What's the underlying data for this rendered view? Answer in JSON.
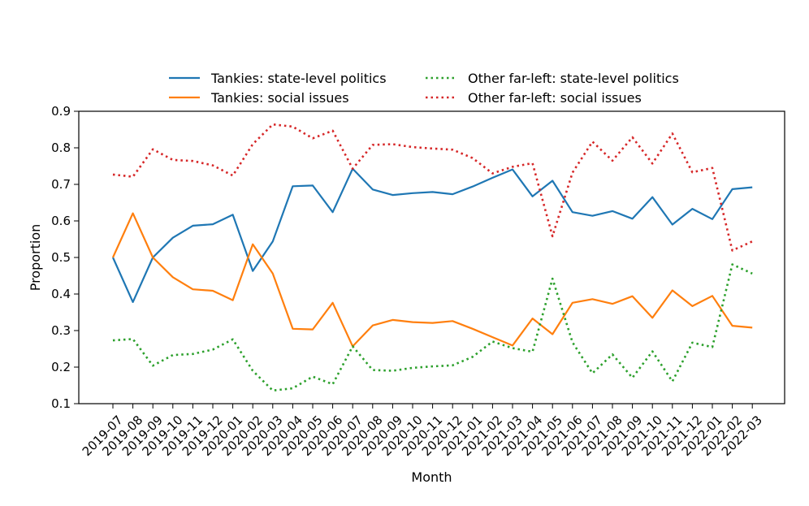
{
  "chart_data": {
    "type": "line",
    "title": "",
    "xlabel": "Month",
    "ylabel": "Proportion",
    "ylim": [
      0.1,
      0.9
    ],
    "yticks": [
      "0.1",
      "0.2",
      "0.3",
      "0.4",
      "0.5",
      "0.6",
      "0.7",
      "0.8",
      "0.9"
    ],
    "grid": false,
    "legend_position": "top-center",
    "categories": [
      "2019-07",
      "2019-08",
      "2019-09",
      "2019-10",
      "2019-11",
      "2019-12",
      "2020-01",
      "2020-02",
      "2020-03",
      "2020-04",
      "2020-05",
      "2020-06",
      "2020-07",
      "2020-08",
      "2020-09",
      "2020-10",
      "2020-11",
      "2020-12",
      "2021-01",
      "2021-02",
      "2021-03",
      "2021-04",
      "2021-05",
      "2021-06",
      "2021-07",
      "2021-08",
      "2021-09",
      "2021-10",
      "2021-11",
      "2021-12",
      "2022-01",
      "2022-02",
      "2022-03"
    ],
    "series": [
      {
        "name": "Tankies: state-level politics",
        "color": "#1f77b4",
        "style": "solid",
        "values": [
          0.5,
          0.378,
          0.5,
          0.554,
          0.587,
          0.591,
          0.617,
          0.463,
          0.544,
          0.695,
          0.697,
          0.624,
          0.743,
          0.686,
          0.671,
          0.676,
          0.679,
          0.673,
          0.694,
          0.718,
          0.741,
          0.667,
          0.71,
          0.624,
          0.614,
          0.627,
          0.606,
          0.665,
          0.59,
          0.633,
          0.605,
          0.687,
          0.692
        ]
      },
      {
        "name": "Tankies: social issues",
        "color": "#ff7f0e",
        "style": "solid",
        "values": [
          0.5,
          0.621,
          0.5,
          0.446,
          0.413,
          0.409,
          0.383,
          0.536,
          0.456,
          0.305,
          0.303,
          0.376,
          0.257,
          0.314,
          0.329,
          0.323,
          0.321,
          0.326,
          0.305,
          0.282,
          0.259,
          0.333,
          0.29,
          0.376,
          0.386,
          0.373,
          0.394,
          0.335,
          0.41,
          0.367,
          0.395,
          0.313,
          0.308
        ]
      },
      {
        "name": "Other far-left: state-level politics",
        "color": "#2ca02c",
        "style": "dotted",
        "values": [
          0.273,
          0.277,
          0.204,
          0.233,
          0.236,
          0.248,
          0.276,
          0.19,
          0.136,
          0.142,
          0.174,
          0.153,
          0.257,
          0.192,
          0.19,
          0.198,
          0.202,
          0.205,
          0.228,
          0.27,
          0.252,
          0.242,
          0.442,
          0.268,
          0.183,
          0.235,
          0.171,
          0.243,
          0.161,
          0.267,
          0.255,
          0.481,
          0.456
        ]
      },
      {
        "name": "Other far-left: social issues",
        "color": "#d62728",
        "style": "dotted",
        "values": [
          0.727,
          0.721,
          0.796,
          0.767,
          0.764,
          0.752,
          0.724,
          0.81,
          0.864,
          0.858,
          0.826,
          0.847,
          0.743,
          0.808,
          0.81,
          0.802,
          0.798,
          0.795,
          0.772,
          0.73,
          0.748,
          0.758,
          0.558,
          0.732,
          0.817,
          0.765,
          0.829,
          0.757,
          0.839,
          0.733,
          0.745,
          0.519,
          0.544
        ]
      }
    ]
  }
}
